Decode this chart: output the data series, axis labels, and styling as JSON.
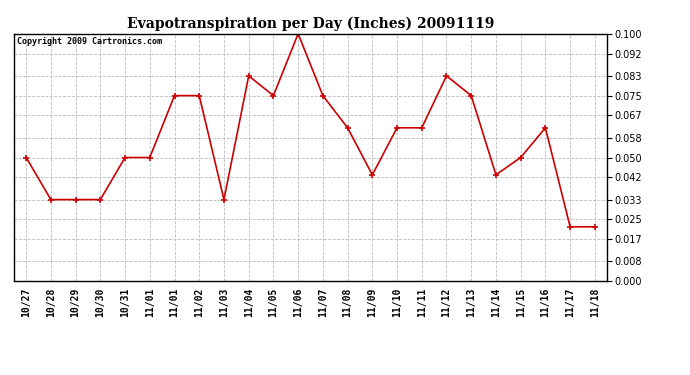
{
  "title": "Evapotranspiration per Day (Inches) 20091119",
  "copyright_text": "Copyright 2009 Cartronics.com",
  "x_labels": [
    "10/27",
    "10/28",
    "10/29",
    "10/30",
    "10/31",
    "11/01",
    "11/01",
    "11/02",
    "11/03",
    "11/04",
    "11/05",
    "11/06",
    "11/07",
    "11/08",
    "11/09",
    "11/10",
    "11/11",
    "11/12",
    "11/13",
    "11/14",
    "11/15",
    "11/16",
    "11/17",
    "11/18"
  ],
  "values": [
    0.05,
    0.033,
    0.033,
    0.033,
    0.05,
    0.05,
    0.075,
    0.075,
    0.033,
    0.083,
    0.075,
    0.1,
    0.075,
    0.062,
    0.043,
    0.062,
    0.062,
    0.083,
    0.075,
    0.043,
    0.05,
    0.062,
    0.022,
    0.022
  ],
  "y_ticks": [
    0.0,
    0.008,
    0.017,
    0.025,
    0.033,
    0.042,
    0.05,
    0.058,
    0.067,
    0.075,
    0.083,
    0.092,
    0.1
  ],
  "line_color": "#cc0000",
  "marker": "+",
  "ylim": [
    0.0,
    0.1
  ],
  "background_color": "#ffffff",
  "grid_color": "#bbbbbb",
  "title_fontsize": 10,
  "tick_fontsize": 7,
  "copyright_fontsize": 6
}
